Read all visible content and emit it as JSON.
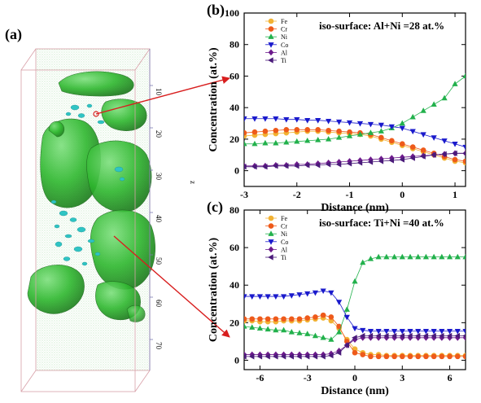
{
  "panel_a": {
    "label": "(a)",
    "z_axis_label": "z",
    "z_ticks": [
      "10",
      "20",
      "30",
      "40",
      "50",
      "60",
      "70"
    ],
    "colors": {
      "isosurface": "#2fb82f",
      "isosurface_dark": "#1d7f1d",
      "clusters": "#2fc4c4",
      "background_atoms": "#8fd08f",
      "box": "#d8a0a8"
    }
  },
  "chart_data": [
    {
      "type": "line",
      "panel": "(b)",
      "annotation": "iso-surface: Al+Ni =28 at.%",
      "xlabel": "Distance (nm)",
      "ylabel": "Concentration (at.%)",
      "xlim": [
        -3,
        1.2
      ],
      "ylim": [
        -10,
        100
      ],
      "x_ticks": [
        "-3",
        "-2",
        "-1",
        "0",
        "1"
      ],
      "y_ticks": [
        "0",
        "20",
        "40",
        "60",
        "80",
        "100"
      ],
      "grid": false,
      "legend_position": "top-left",
      "x": [
        -3.0,
        -2.8,
        -2.6,
        -2.4,
        -2.2,
        -2.0,
        -1.8,
        -1.6,
        -1.4,
        -1.2,
        -1.0,
        -0.8,
        -0.6,
        -0.4,
        -0.2,
        0.0,
        0.2,
        0.4,
        0.6,
        0.8,
        1.0,
        1.2
      ],
      "series": [
        {
          "name": "Fe",
          "color": "#f2b233",
          "marker": "circle",
          "values": [
            22,
            22.5,
            23,
            23.5,
            24,
            24.5,
            25,
            25,
            24.5,
            24,
            23.5,
            23,
            22,
            20,
            18,
            16,
            14,
            12,
            10,
            8,
            6,
            5
          ]
        },
        {
          "name": "Cr",
          "color": "#ee5a1a",
          "marker": "circle",
          "values": [
            24,
            24.5,
            25,
            25.5,
            26,
            26,
            26,
            26,
            25.5,
            25,
            24.5,
            24,
            23,
            21,
            19,
            17,
            15,
            13,
            11,
            9,
            7,
            6
          ]
        },
        {
          "name": "Ni",
          "color": "#22b14c",
          "marker": "triangle-up",
          "values": [
            17,
            17,
            17.5,
            17.5,
            18,
            18.5,
            19,
            19.5,
            20,
            21,
            22,
            23,
            24,
            25,
            27,
            30,
            34,
            38,
            42,
            46,
            55,
            60
          ]
        },
        {
          "name": "Co",
          "color": "#1a1acc",
          "marker": "triangle-down",
          "values": [
            33,
            33,
            33,
            33,
            32.5,
            32.5,
            32,
            32,
            31.5,
            31,
            30.5,
            30,
            29.5,
            29,
            28,
            27,
            25,
            23,
            21,
            19,
            17,
            15
          ]
        },
        {
          "name": "Al",
          "color": "#6d1a8c",
          "marker": "diamond",
          "values": [
            3,
            3,
            3,
            3.5,
            3.5,
            4,
            4,
            4.5,
            5,
            5.5,
            6,
            6.5,
            7,
            7.5,
            8,
            8.5,
            9,
            9.5,
            10,
            10.5,
            11,
            11
          ]
        },
        {
          "name": "Ti",
          "color": "#4a1a7a",
          "marker": "triangle-left",
          "values": [
            2.5,
            2.5,
            2.5,
            3,
            3,
            3,
            3.5,
            3.5,
            4,
            4,
            4.5,
            5,
            5.5,
            6,
            6.5,
            7,
            8,
            9,
            10,
            10.5,
            11,
            11
          ]
        }
      ]
    },
    {
      "type": "line",
      "panel": "(c)",
      "annotation": "iso-surface: Ti+Ni =40 at.%",
      "xlabel": "Distance (nm)",
      "ylabel": "Concentration (at.%)",
      "xlim": [
        -7,
        7
      ],
      "ylim": [
        -5,
        80
      ],
      "x_ticks": [
        "-6",
        "-3",
        "0",
        "3",
        "6"
      ],
      "y_ticks": [
        "0",
        "20",
        "40",
        "60",
        "80"
      ],
      "grid": false,
      "legend_position": "top-left",
      "x": [
        -7.0,
        -6.5,
        -6.0,
        -5.5,
        -5.0,
        -4.5,
        -4.0,
        -3.5,
        -3.0,
        -2.5,
        -2.0,
        -1.5,
        -1.0,
        -0.5,
        0.0,
        0.5,
        1.0,
        1.5,
        2.0,
        2.5,
        3.0,
        3.5,
        4.0,
        4.5,
        5.0,
        5.5,
        6.0,
        6.5,
        7.0
      ],
      "series": [
        {
          "name": "Fe",
          "color": "#f2b233",
          "marker": "circle",
          "values": [
            21,
            21,
            20.5,
            20.5,
            20.5,
            21,
            21,
            21,
            21.5,
            22,
            22.5,
            21,
            17,
            11,
            6,
            4,
            3,
            3,
            2.5,
            2.5,
            2.5,
            2.5,
            2.5,
            2.5,
            2.5,
            2.5,
            2.5,
            2.5,
            2.5
          ]
        },
        {
          "name": "Cr",
          "color": "#ee5a1a",
          "marker": "circle",
          "values": [
            22,
            22,
            22,
            22,
            22,
            22,
            22,
            22,
            22.5,
            23,
            24,
            23,
            18,
            10,
            4,
            3,
            2,
            2,
            2,
            2,
            2,
            2,
            2,
            2,
            2,
            2,
            2,
            2,
            2
          ]
        },
        {
          "name": "Ni",
          "color": "#22b14c",
          "marker": "triangle-up",
          "values": [
            18,
            17.5,
            17,
            16.5,
            16,
            16,
            15,
            14.5,
            14,
            13,
            12,
            11,
            15,
            27,
            42,
            52,
            54,
            55,
            55,
            55,
            55,
            55,
            55,
            55,
            55,
            55,
            55,
            55,
            55
          ]
        },
        {
          "name": "Co",
          "color": "#1a1acc",
          "marker": "triangle-down",
          "values": [
            34,
            34,
            34,
            34,
            34,
            34,
            34.5,
            35,
            35.5,
            36,
            37,
            36,
            31,
            23,
            17,
            16,
            15.5,
            15.5,
            15.5,
            15.5,
            15.5,
            15.5,
            15.5,
            15.5,
            15.5,
            15.5,
            15.5,
            15.5,
            15.5
          ]
        },
        {
          "name": "Al",
          "color": "#6d1a8c",
          "marker": "diamond",
          "values": [
            3,
            3,
            3,
            3,
            3,
            3,
            3,
            3,
            3,
            3,
            3,
            3.5,
            5,
            8,
            11,
            12,
            12,
            12,
            12,
            12,
            12,
            12,
            12,
            12,
            12,
            12,
            12,
            12,
            12
          ]
        },
        {
          "name": "Ti",
          "color": "#4a1a7a",
          "marker": "triangle-left",
          "values": [
            2,
            2,
            2,
            2,
            2,
            2,
            2,
            2,
            2,
            2,
            2,
            2.5,
            4,
            8,
            12,
            13,
            13,
            13,
            13,
            13,
            13,
            13,
            13,
            13,
            13,
            13,
            13,
            13,
            13
          ]
        }
      ]
    }
  ]
}
